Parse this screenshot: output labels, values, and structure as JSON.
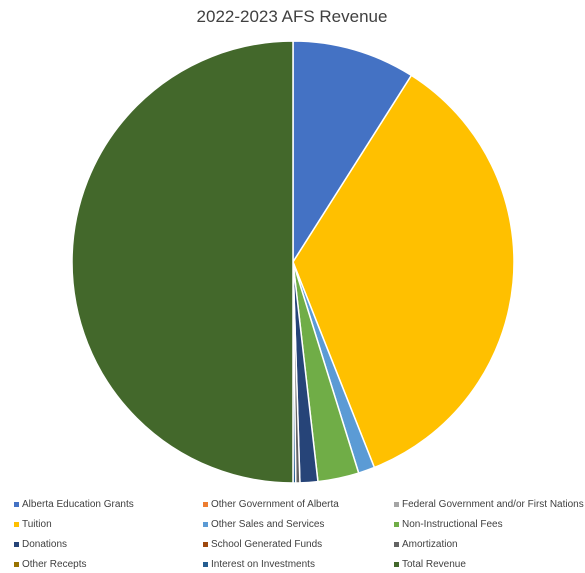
{
  "chart_data": {
    "type": "pie",
    "title": "2022-2023 AFS Revenue",
    "legend_position": "bottom",
    "slices": [
      {
        "label": "Alberta Education Grants",
        "value": 9.0,
        "color": "#4472C4"
      },
      {
        "label": "Other Government of Alberta",
        "value": 0.0,
        "color": "#ED7D31"
      },
      {
        "label": "Federal Government and/or First Nations",
        "value": 0.0,
        "color": "#A5A5A5"
      },
      {
        "label": "Tuition",
        "value": 35.0,
        "color": "#FFC000"
      },
      {
        "label": "Other Sales and Services",
        "value": 1.2,
        "color": "#5B9BD5"
      },
      {
        "label": "Non-Instructional Fees",
        "value": 3.0,
        "color": "#70AD47"
      },
      {
        "label": "Donations",
        "value": 1.3,
        "color": "#264478"
      },
      {
        "label": "School Generated Funds",
        "value": 0.0,
        "color": "#9E480E"
      },
      {
        "label": "Amortization",
        "value": 0.3,
        "color": "#636363"
      },
      {
        "label": "Other Recepts",
        "value": 0.0,
        "color": "#997300"
      },
      {
        "label": "Interest on Investments",
        "value": 0.2,
        "color": "#255E91"
      },
      {
        "label": "Total Revenue",
        "value": 50.0,
        "color": "#43682B"
      }
    ]
  }
}
